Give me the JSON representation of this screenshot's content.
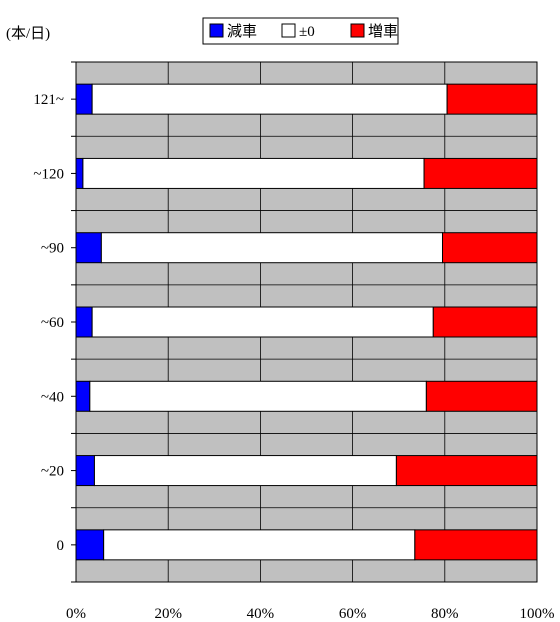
{
  "chart_data": {
    "type": "bar",
    "orientation": "horizontal",
    "stacked": "percent",
    "unit_label": "(本/日)",
    "categories": [
      "121~",
      "~120",
      "~90",
      "~60",
      "~40",
      "~20",
      "0"
    ],
    "series": [
      {
        "name": "減車",
        "color": "#0000ff",
        "values": [
          3.5,
          1.5,
          5.5,
          3.5,
          3.0,
          4.0,
          6.0
        ]
      },
      {
        "name": "±0",
        "color": "#ffffff",
        "values": [
          77.0,
          74.0,
          74.0,
          74.0,
          73.0,
          65.5,
          67.5
        ]
      },
      {
        "name": "増車",
        "color": "#ff0000",
        "values": [
          19.5,
          24.5,
          20.5,
          22.5,
          24.0,
          30.5,
          26.5
        ]
      }
    ],
    "x_ticks": [
      "0%",
      "20%",
      "40%",
      "60%",
      "80%",
      "100%"
    ],
    "xlim": [
      0,
      100
    ],
    "grid": true,
    "legend_position": "top"
  }
}
